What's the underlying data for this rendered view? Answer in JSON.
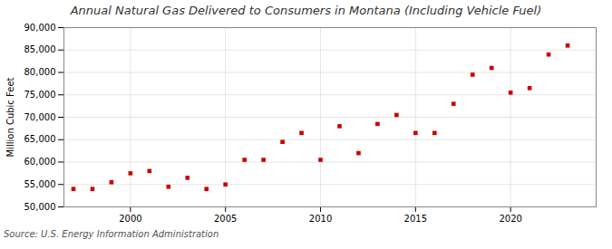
{
  "chart_data": {
    "type": "scatter",
    "title": "Annual Natural Gas Delivered to Consumers in Montana (Including Vehicle Fuel)",
    "ylabel": "Million Cubic Feet",
    "source": "Source: U.S. Energy Information Administration",
    "x": [
      1997,
      1998,
      1999,
      2000,
      2001,
      2002,
      2003,
      2004,
      2005,
      2006,
      2007,
      2008,
      2009,
      2010,
      2011,
      2012,
      2013,
      2014,
      2015,
      2016,
      2017,
      2018,
      2019,
      2020,
      2021,
      2022,
      2023
    ],
    "values": [
      54000,
      54000,
      55500,
      57500,
      58000,
      54500,
      56500,
      54000,
      55000,
      60500,
      60500,
      64500,
      66500,
      60500,
      68000,
      62000,
      68500,
      70500,
      66500,
      66500,
      73000,
      79500,
      81000,
      75500,
      76500,
      84000,
      86000
    ],
    "color": "#cc0000",
    "marker": "square",
    "grid": true,
    "xlim": [
      1996.5,
      2024.5
    ],
    "xticks": [
      2000,
      2005,
      2010,
      2015,
      2020
    ],
    "ylim": [
      50000,
      90000
    ],
    "yticks": [
      {
        "value": 50000,
        "label": "50,000"
      },
      {
        "value": 55000,
        "label": "55,000"
      },
      {
        "value": 60000,
        "label": "60,000"
      },
      {
        "value": 65000,
        "label": "65,000"
      },
      {
        "value": 70000,
        "label": "70,000"
      },
      {
        "value": 75000,
        "label": "75,000"
      },
      {
        "value": 80000,
        "label": "80,000"
      },
      {
        "value": 85000,
        "label": "85,000"
      },
      {
        "value": 90000,
        "label": "90,000"
      }
    ]
  }
}
